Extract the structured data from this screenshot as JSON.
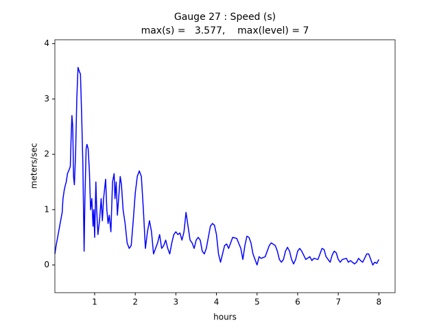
{
  "chart_data": {
    "type": "line",
    "title": "Gauge 27 : Speed (s)",
    "subtitle": "max(s) =   3.577,    max(level) = 7",
    "x_label": "hours",
    "y_label": "meters/sec",
    "x": [
      0.02,
      0.05,
      0.1,
      0.15,
      0.2,
      0.22,
      0.25,
      0.28,
      0.3,
      0.33,
      0.37,
      0.4,
      0.42,
      0.44,
      0.46,
      0.48,
      0.5,
      0.53,
      0.56,
      0.59,
      0.62,
      0.65,
      0.68,
      0.71,
      0.74,
      0.76,
      0.79,
      0.81,
      0.84,
      0.87,
      0.9,
      0.93,
      0.96,
      0.98,
      1.0,
      1.03,
      1.05,
      1.08,
      1.12,
      1.16,
      1.19,
      1.22,
      1.27,
      1.3,
      1.33,
      1.36,
      1.4,
      1.44,
      1.48,
      1.5,
      1.53,
      1.56,
      1.6,
      1.63,
      1.66,
      1.7,
      1.75,
      1.8,
      1.85,
      1.9,
      1.95,
      2.0,
      2.05,
      2.1,
      2.15,
      2.2,
      2.25,
      2.3,
      2.35,
      2.4,
      2.45,
      2.5,
      2.55,
      2.6,
      2.65,
      2.7,
      2.75,
      2.8,
      2.85,
      2.9,
      2.95,
      3.0,
      3.05,
      3.1,
      3.15,
      3.2,
      3.25,
      3.3,
      3.35,
      3.4,
      3.45,
      3.5,
      3.55,
      3.6,
      3.65,
      3.7,
      3.75,
      3.8,
      3.85,
      3.9,
      3.95,
      4.0,
      4.05,
      4.1,
      4.15,
      4.2,
      4.25,
      4.3,
      4.4,
      4.5,
      4.6,
      4.65,
      4.7,
      4.75,
      4.8,
      4.85,
      4.9,
      4.95,
      5.0,
      5.05,
      5.1,
      5.2,
      5.25,
      5.3,
      5.35,
      5.45,
      5.5,
      5.55,
      5.6,
      5.65,
      5.7,
      5.75,
      5.8,
      5.85,
      5.9,
      5.95,
      6.0,
      6.05,
      6.1,
      6.2,
      6.3,
      6.35,
      6.4,
      6.5,
      6.55,
      6.6,
      6.65,
      6.7,
      6.8,
      6.85,
      6.9,
      6.95,
      7.0,
      7.05,
      7.1,
      7.2,
      7.25,
      7.3,
      7.4,
      7.45,
      7.5,
      7.55,
      7.6,
      7.65,
      7.7,
      7.75,
      7.8,
      7.85,
      7.9,
      7.95,
      8.0
    ],
    "series": [
      {
        "name": "s",
        "color": "#0000ff",
        "values": [
          0.2,
          0.35,
          0.55,
          0.75,
          0.95,
          1.2,
          1.35,
          1.45,
          1.5,
          1.65,
          1.72,
          1.78,
          2.3,
          2.7,
          2.5,
          1.6,
          1.45,
          2.0,
          3.0,
          3.57,
          3.5,
          3.45,
          2.7,
          1.8,
          0.25,
          1.2,
          2.1,
          2.18,
          2.1,
          1.7,
          1.0,
          1.2,
          0.7,
          1.0,
          0.5,
          1.5,
          1.0,
          0.55,
          0.8,
          1.2,
          0.8,
          1.2,
          1.55,
          1.0,
          0.75,
          0.9,
          0.6,
          1.5,
          1.65,
          1.2,
          1.5,
          0.9,
          1.3,
          1.6,
          1.45,
          1.0,
          0.75,
          0.4,
          0.3,
          0.35,
          0.8,
          1.3,
          1.6,
          1.7,
          1.6,
          1.0,
          0.3,
          0.6,
          0.8,
          0.6,
          0.2,
          0.3,
          0.4,
          0.55,
          0.3,
          0.35,
          0.45,
          0.3,
          0.2,
          0.4,
          0.55,
          0.6,
          0.55,
          0.58,
          0.45,
          0.6,
          0.95,
          0.7,
          0.45,
          0.4,
          0.3,
          0.45,
          0.5,
          0.45,
          0.25,
          0.2,
          0.3,
          0.5,
          0.7,
          0.75,
          0.72,
          0.55,
          0.2,
          0.05,
          0.2,
          0.35,
          0.38,
          0.3,
          0.5,
          0.48,
          0.3,
          0.1,
          0.35,
          0.52,
          0.5,
          0.4,
          0.2,
          0.1,
          0.0,
          0.15,
          0.12,
          0.15,
          0.25,
          0.35,
          0.4,
          0.35,
          0.25,
          0.1,
          0.05,
          0.1,
          0.25,
          0.32,
          0.25,
          0.1,
          0.02,
          0.1,
          0.25,
          0.3,
          0.25,
          0.1,
          0.15,
          0.08,
          0.12,
          0.1,
          0.2,
          0.3,
          0.28,
          0.15,
          0.05,
          0.18,
          0.25,
          0.22,
          0.1,
          0.05,
          0.1,
          0.12,
          0.05,
          0.08,
          0.02,
          0.05,
          0.12,
          0.08,
          0.05,
          0.12,
          0.2,
          0.2,
          0.1,
          0.0,
          0.05,
          0.03,
          0.1
        ]
      }
    ],
    "xlim": [
      0.02,
      8.4
    ],
    "ylim": [
      -0.5,
      4.07
    ],
    "xticks": [
      1,
      2,
      3,
      4,
      5,
      6,
      7,
      8
    ],
    "yticks": [
      0,
      1,
      2,
      3,
      4
    ],
    "grid": false
  }
}
